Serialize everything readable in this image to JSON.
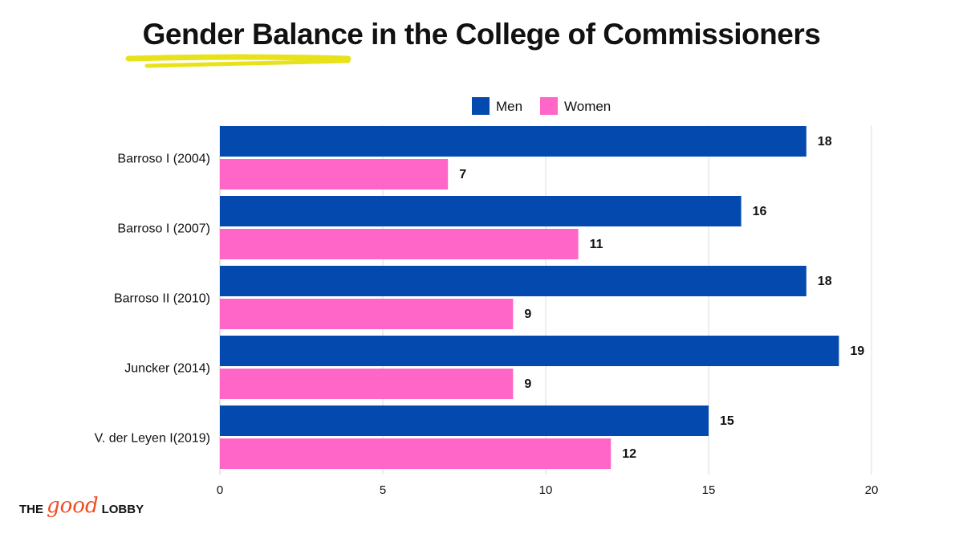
{
  "title": "Gender Balance in the College of Commissioners",
  "colors": {
    "men": "#044AAE",
    "women": "#FF66C8",
    "highlight": "#E8E21B",
    "logo_accent": "#F04E23",
    "text": "#111111"
  },
  "logo": {
    "part1": "THE",
    "part2": "good",
    "part3": "LOBBY"
  },
  "chart_data": {
    "type": "bar",
    "orientation": "horizontal",
    "categories": [
      "Barroso I (2004)",
      "Barroso I (2007)",
      "Barroso II (2010)",
      "Juncker (2014)",
      "V. der Leyen I(2019)"
    ],
    "series": [
      {
        "name": "Men",
        "values": [
          18,
          16,
          18,
          19,
          15
        ]
      },
      {
        "name": "Women",
        "values": [
          7,
          11,
          9,
          9,
          12
        ]
      }
    ],
    "xlim": [
      0,
      20
    ],
    "xticks": [
      0,
      5,
      10,
      15,
      20
    ],
    "legend": "top",
    "grid": true,
    "data_labels": true
  }
}
